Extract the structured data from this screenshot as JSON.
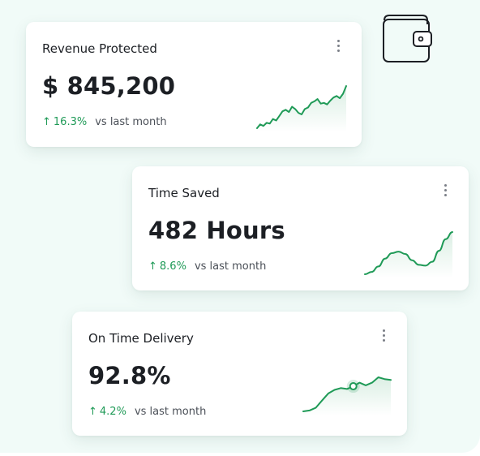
{
  "cards": [
    {
      "title": "Revenue Protected",
      "value": "$ 845,200",
      "change_pct": "16.3%",
      "change_text": "vs last month",
      "trend": [
        2,
        7,
        5,
        9,
        8,
        14,
        12,
        18,
        24,
        26,
        23,
        30,
        27,
        22,
        20,
        27,
        29,
        35,
        37,
        40,
        34,
        35,
        33,
        38,
        42,
        44,
        41,
        47,
        57
      ],
      "color": "#1f9a57"
    },
    {
      "title": "Time Saved",
      "value": "482 Hours",
      "change_pct": "8.6%",
      "change_text": "vs last month",
      "trend": [
        0,
        3,
        10,
        20,
        27,
        29,
        26,
        18,
        12,
        11,
        16,
        30,
        45,
        54
      ],
      "color": "#1f9a57"
    },
    {
      "title": "On Time Delivery",
      "value": "92.8%",
      "change_pct": "4.2%",
      "change_text": "vs last month",
      "trend": [
        2,
        3,
        6,
        14,
        22,
        26,
        28,
        27,
        30,
        34,
        31,
        34,
        40,
        38,
        37
      ],
      "highlight_index": 8,
      "color": "#1f9a57"
    }
  ],
  "icons": {
    "header": "wallet-icon",
    "menu": "more-vertical-icon",
    "trend": "arrow-up-icon"
  }
}
